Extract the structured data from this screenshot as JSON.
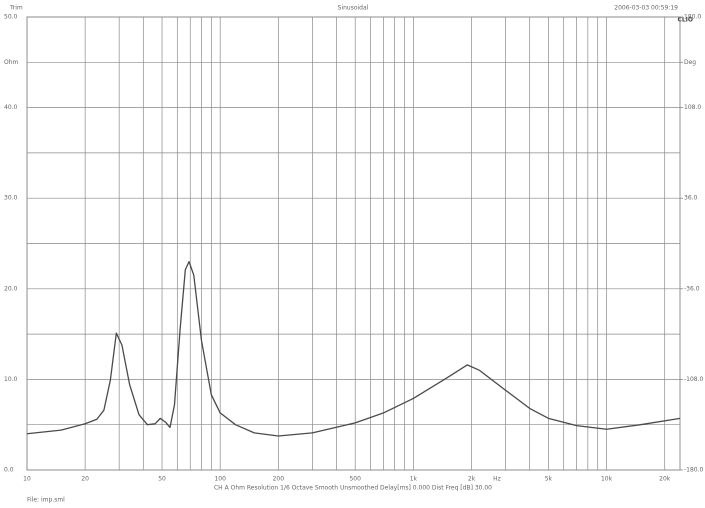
{
  "chart_data": {
    "type": "line",
    "title": "Sinusoidal",
    "top_left": "Trim",
    "top_right": "2006-03-03 00:59:19",
    "brand": "CLIO",
    "x_unit": "Hz",
    "footer": "CH A   Ohm   Resolution 1/6 Octave   Smooth Unsmoothed   Delay[ms] 0.000   Dist Freq [dB] 30.00",
    "file": "File: imp.sml",
    "log_x": true,
    "grid": true,
    "color": "#4a4a4a",
    "xlim": [
      10,
      24000
    ],
    "xticks": [
      10,
      20,
      50,
      100,
      200,
      500,
      {
        "value": 1000,
        "label": "1k"
      },
      {
        "value": 2000,
        "label": "2k"
      },
      {
        "value": 5000,
        "label": "5k"
      },
      {
        "value": 10000,
        "label": "10k"
      },
      {
        "value": 20000,
        "label": "20k"
      }
    ],
    "x_minor_grid": [
      30,
      40,
      60,
      70,
      80,
      90,
      300,
      400,
      600,
      700,
      800,
      900,
      3000,
      4000,
      6000,
      7000,
      8000,
      9000
    ],
    "ylim": [
      0,
      50
    ],
    "yticks": [
      {
        "value": 0,
        "label": "0.0"
      },
      {
        "value": 10,
        "label": "10.0"
      },
      {
        "value": 20,
        "label": "20.0"
      },
      {
        "value": 30,
        "label": "30.0"
      },
      {
        "value": 40,
        "label": "40.0"
      },
      {
        "value": 45,
        "label": "Ohm"
      },
      {
        "value": 50,
        "label": "50.0"
      }
    ],
    "y_minor_grid": [
      5,
      15,
      25,
      35
    ],
    "y2lim": [
      -180,
      180
    ],
    "y2ticks": [
      {
        "value": 180,
        "label": "180.0"
      },
      {
        "value": 144,
        "label": "Deg"
      },
      {
        "value": 108,
        "label": "108.0"
      },
      {
        "value": 36,
        "label": "36.0"
      },
      {
        "value": -36,
        "label": "-36.0"
      },
      {
        "value": -108,
        "label": "-108.0"
      },
      {
        "value": -180,
        "label": "-180.0"
      }
    ],
    "x": [
      10,
      15,
      20,
      23,
      25,
      27,
      29,
      31,
      34,
      38,
      42,
      46,
      49,
      52,
      55,
      58,
      62,
      66,
      69,
      73,
      80,
      90,
      100,
      120,
      150,
      200,
      300,
      500,
      700,
      1000,
      1500,
      1900,
      2200,
      3000,
      4000,
      5000,
      7000,
      10000,
      15000,
      24000
    ],
    "values": [
      4.0,
      4.4,
      5.1,
      5.6,
      6.6,
      9.9,
      15.1,
      13.8,
      9.4,
      6.1,
      5.0,
      5.1,
      5.7,
      5.3,
      4.7,
      7.2,
      15.5,
      22.1,
      23.0,
      21.5,
      14.3,
      8.3,
      6.3,
      5.0,
      4.1,
      3.75,
      4.1,
      5.2,
      6.3,
      7.9,
      10.2,
      11.6,
      11.0,
      8.8,
      6.8,
      5.7,
      4.9,
      4.5,
      5.0,
      5.7
    ]
  }
}
